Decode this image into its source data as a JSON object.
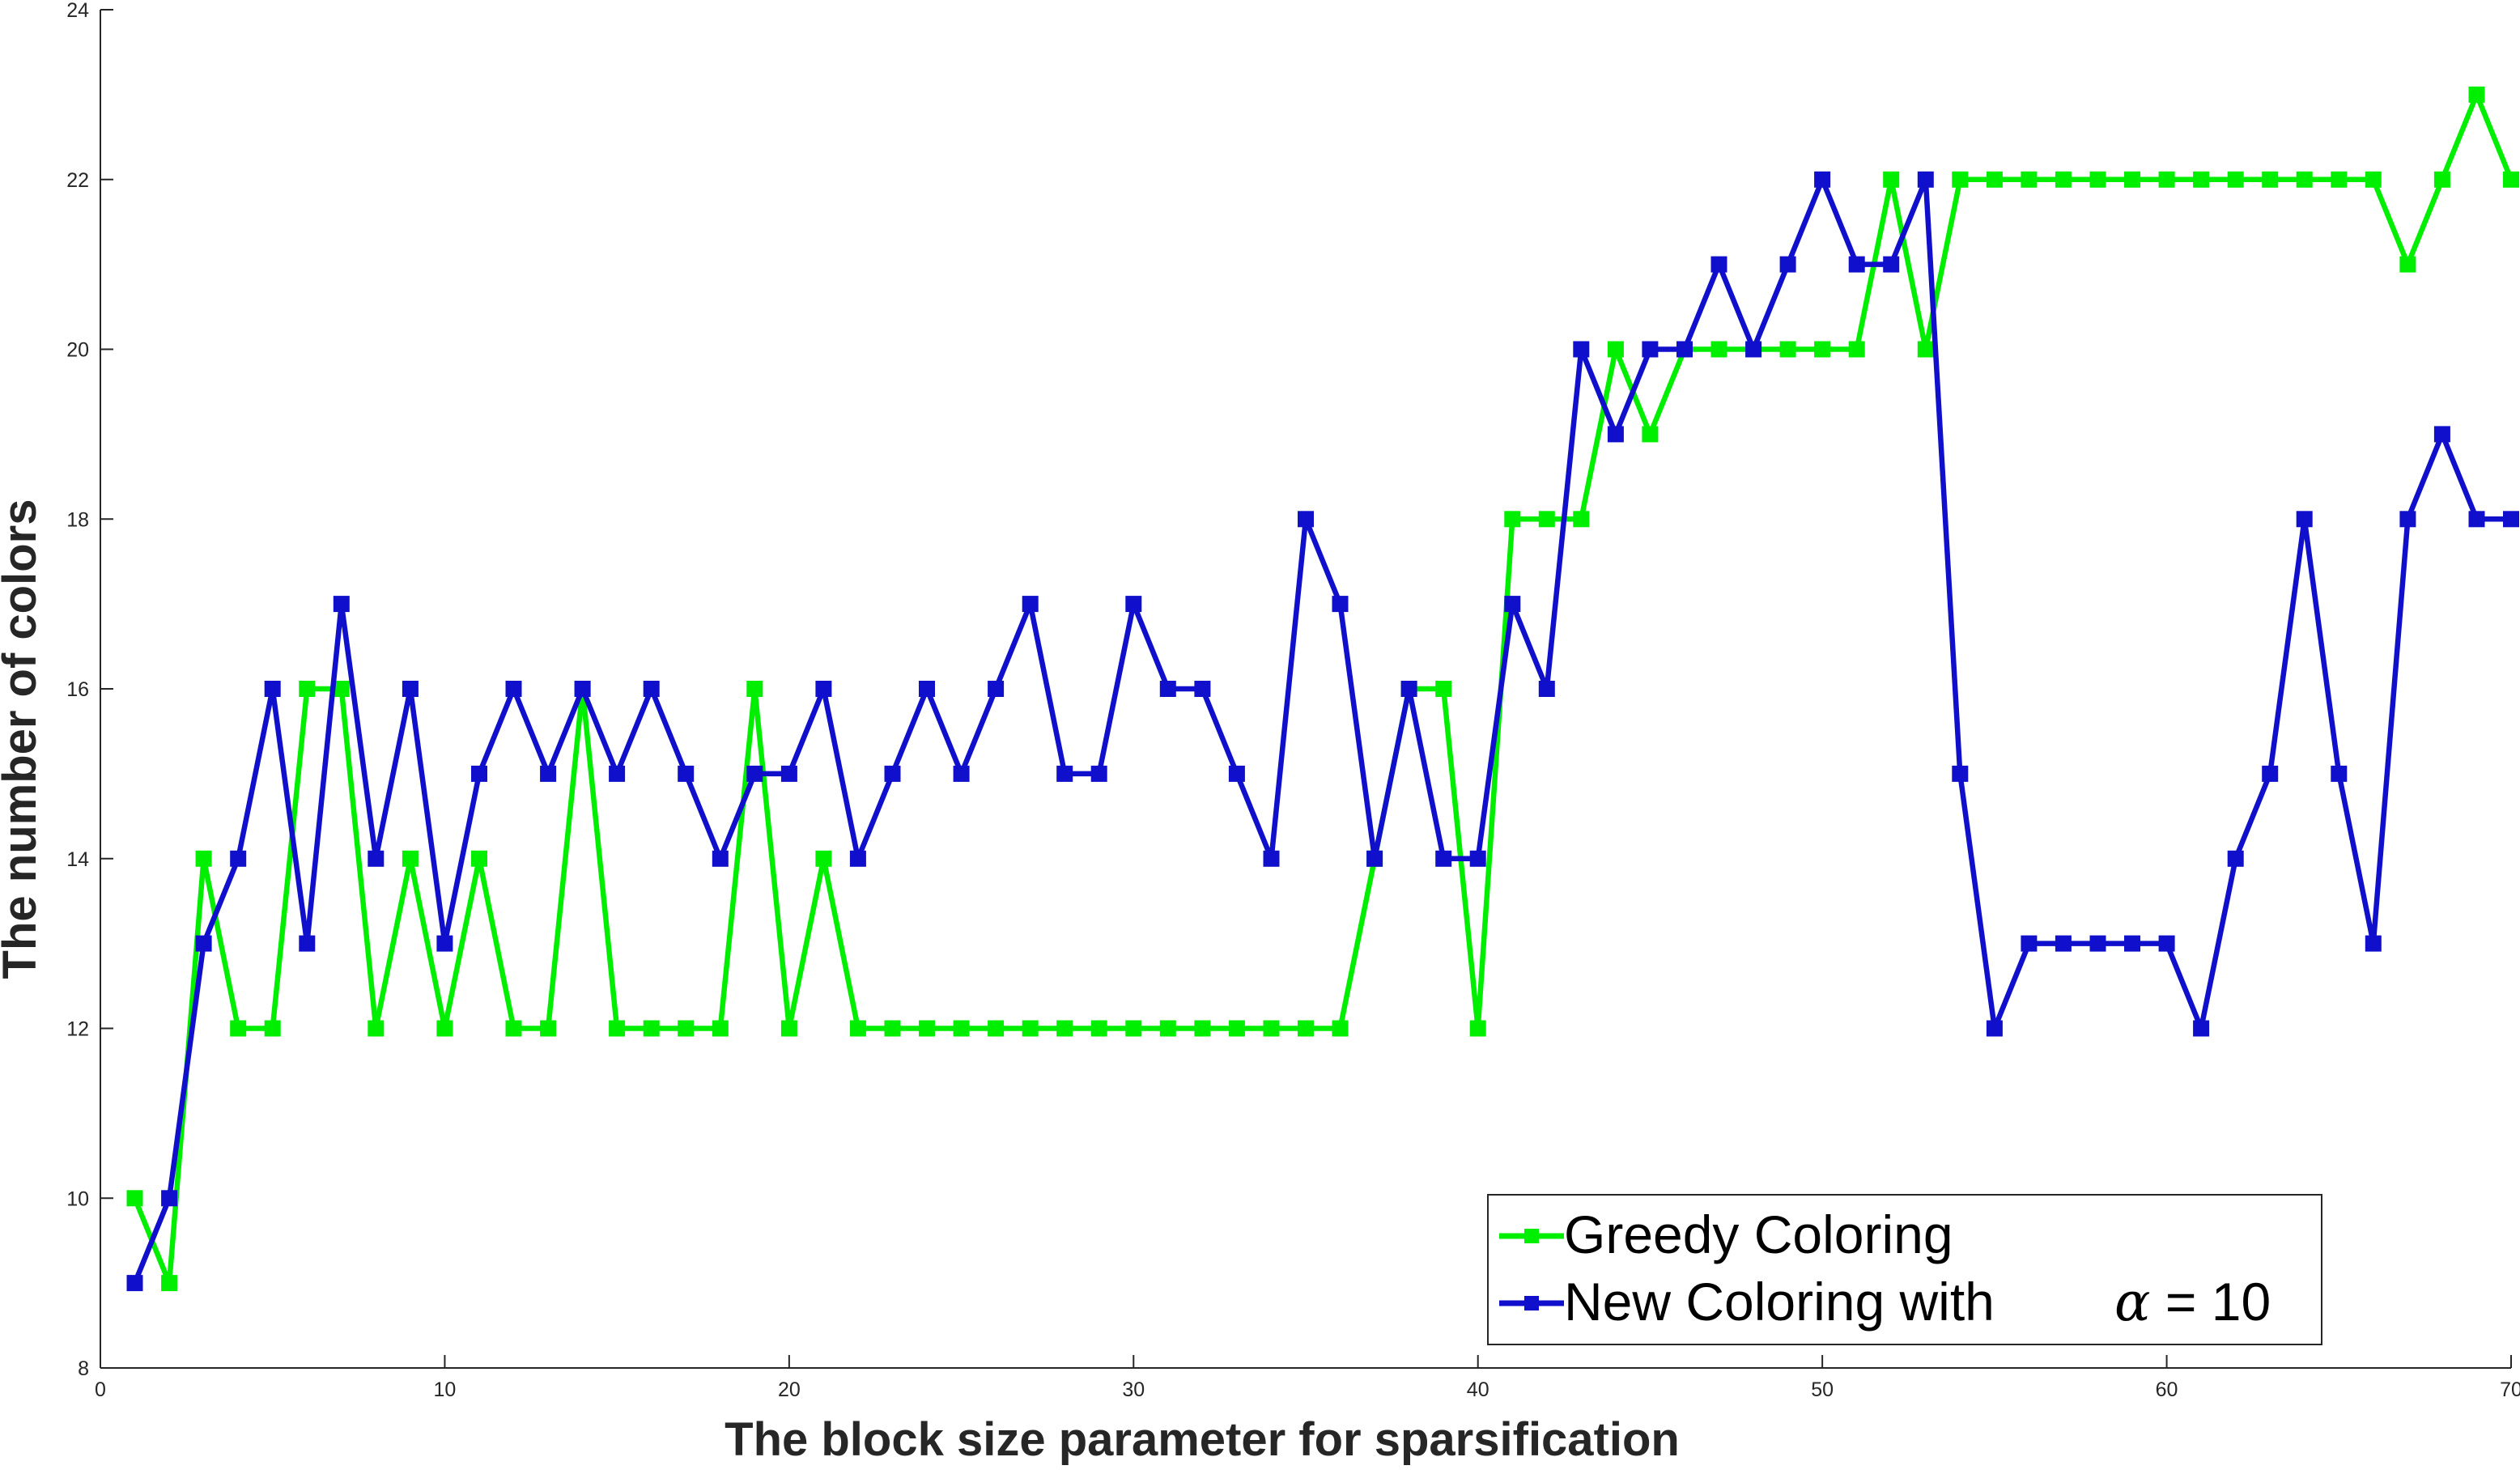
{
  "chart_data": {
    "type": "line",
    "xlabel": "The block size parameter for sparsification",
    "ylabel": "The number of colors",
    "xlim": [
      0,
      70
    ],
    "ylim": [
      8,
      24
    ],
    "xticks": [
      0,
      10,
      20,
      30,
      40,
      50,
      60,
      70
    ],
    "yticks": [
      8,
      10,
      12,
      14,
      16,
      18,
      20,
      22,
      24
    ],
    "grid": false,
    "legend_position": "bottom-right",
    "x": [
      1,
      2,
      3,
      4,
      5,
      6,
      7,
      8,
      9,
      10,
      11,
      12,
      13,
      14,
      15,
      16,
      17,
      18,
      19,
      20,
      21,
      22,
      23,
      24,
      25,
      26,
      27,
      28,
      29,
      30,
      31,
      32,
      33,
      34,
      35,
      36,
      37,
      38,
      39,
      40,
      41,
      42,
      43,
      44,
      45,
      46,
      47,
      48,
      49,
      50,
      51,
      52,
      53,
      54,
      55,
      56,
      57,
      58,
      59,
      60,
      61,
      62,
      63,
      64,
      65,
      66,
      67,
      68,
      69,
      70
    ],
    "series": [
      {
        "name": "Greedy Coloring",
        "color": "#00ee00",
        "values": [
          10,
          9,
          14,
          12,
          12,
          16,
          16,
          12,
          14,
          12,
          14,
          12,
          12,
          16,
          12,
          12,
          12,
          12,
          16,
          12,
          14,
          12,
          12,
          12,
          12,
          12,
          12,
          12,
          12,
          12,
          12,
          12,
          12,
          12,
          12,
          12,
          14,
          16,
          16,
          12,
          18,
          18,
          18,
          20,
          19,
          20,
          20,
          20,
          20,
          20,
          20,
          22,
          20,
          22,
          22,
          22,
          22,
          22,
          22,
          22,
          22,
          22,
          22,
          22,
          22,
          22,
          21,
          22,
          23,
          22
        ]
      },
      {
        "name": "New Coloring with",
        "name_suffix": "α = 10",
        "color": "#1010cc",
        "values": [
          9,
          10,
          13,
          14,
          16,
          13,
          17,
          14,
          16,
          13,
          15,
          16,
          15,
          16,
          15,
          16,
          15,
          14,
          15,
          15,
          16,
          14,
          15,
          16,
          15,
          16,
          17,
          15,
          15,
          17,
          16,
          16,
          15,
          14,
          18,
          17,
          14,
          16,
          14,
          14,
          17,
          16,
          20,
          19,
          20,
          20,
          21,
          20,
          21,
          22,
          21,
          21,
          22,
          15,
          12,
          13,
          13,
          13,
          13,
          13,
          12,
          14,
          15,
          18,
          15,
          13,
          18,
          19,
          18,
          18
        ]
      }
    ]
  }
}
